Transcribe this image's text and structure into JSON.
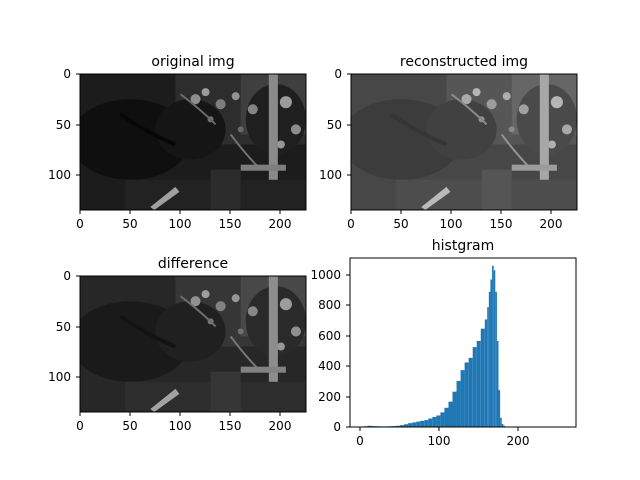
{
  "chart_data": [
    {
      "type": "image",
      "title": "original img",
      "x_ticks": [
        "0",
        "50",
        "100",
        "150",
        "200"
      ],
      "y_ticks": [
        "0",
        "50",
        "100"
      ],
      "xlim": [
        0,
        225
      ],
      "ylim": [
        0,
        135
      ],
      "colormap": "gray"
    },
    {
      "type": "image",
      "title": "reconstructed img",
      "x_ticks": [
        "0",
        "50",
        "100",
        "150",
        "200"
      ],
      "y_ticks": [
        "0",
        "50",
        "100"
      ],
      "xlim": [
        0,
        225
      ],
      "ylim": [
        0,
        135
      ],
      "colormap": "gray"
    },
    {
      "type": "image",
      "title": "difference",
      "x_ticks": [
        "0",
        "50",
        "100",
        "150",
        "200"
      ],
      "y_ticks": [
        "0",
        "50",
        "100"
      ],
      "xlim": [
        0,
        225
      ],
      "ylim": [
        0,
        135
      ],
      "colormap": "gray"
    },
    {
      "type": "bar",
      "title": "histgram",
      "x_ticks": [
        "0",
        "100",
        "200"
      ],
      "y_ticks": [
        "0",
        "200",
        "400",
        "600",
        "800",
        "1000"
      ],
      "xlim": [
        -12,
        268
      ],
      "ylim": [
        0,
        1100
      ],
      "bar_color": "#1f77b4",
      "x": [
        5,
        10,
        15,
        20,
        25,
        30,
        35,
        40,
        45,
        50,
        55,
        60,
        65,
        70,
        75,
        80,
        85,
        90,
        95,
        100,
        105,
        110,
        115,
        120,
        125,
        130,
        135,
        140,
        145,
        150,
        155,
        158,
        160,
        162,
        164,
        166,
        168,
        170,
        172,
        174,
        176,
        178,
        180
      ],
      "values": [
        5,
        8,
        6,
        5,
        4,
        4,
        5,
        6,
        8,
        12,
        18,
        25,
        30,
        35,
        40,
        45,
        55,
        65,
        75,
        95,
        125,
        165,
        230,
        300,
        370,
        420,
        450,
        520,
        560,
        640,
        700,
        780,
        880,
        960,
        1050,
        1020,
        880,
        560,
        240,
        60,
        20,
        8,
        2
      ]
    }
  ]
}
